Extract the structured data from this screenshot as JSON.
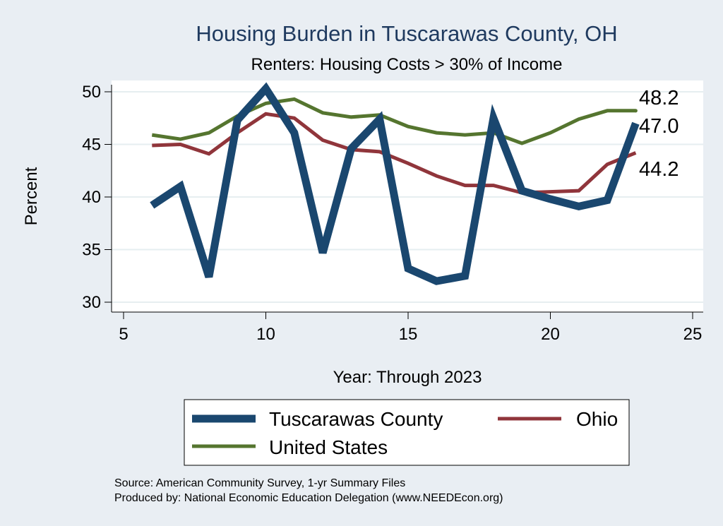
{
  "chart_data": {
    "type": "line",
    "title": "Housing Burden in Tuscarawas County, OH",
    "subtitle": "Renters: Housing Costs > 30% of Income",
    "xlabel": "Year: Through 2023",
    "ylabel": "Percent",
    "xlim": [
      5,
      25
    ],
    "ylim": [
      30,
      51
    ],
    "xticks": [
      5,
      10,
      15,
      20,
      25
    ],
    "yticks": [
      30,
      35,
      40,
      45,
      50
    ],
    "grid": true,
    "legend_position": "bottom",
    "series": [
      {
        "name": "Tuscarawas County",
        "color": "#1a476f",
        "x": [
          6,
          7,
          8,
          9,
          10,
          11,
          12,
          13,
          14,
          15,
          16,
          17,
          18,
          19,
          20,
          21,
          22,
          23
        ],
        "y": [
          39.2,
          41.0,
          32.4,
          47.3,
          50.3,
          46.1,
          34.7,
          44.6,
          47.4,
          33.2,
          32.0,
          32.5,
          47.5,
          40.6,
          39.8,
          39.1,
          39.7,
          47.0
        ],
        "end_label": "47.0"
      },
      {
        "name": "Ohio",
        "color": "#90353b",
        "x": [
          6,
          7,
          8,
          9,
          10,
          11,
          12,
          13,
          14,
          15,
          16,
          17,
          18,
          19,
          20,
          21,
          22,
          23
        ],
        "y": [
          44.9,
          45.0,
          44.1,
          46.1,
          47.9,
          47.5,
          45.4,
          44.5,
          44.3,
          43.2,
          42.0,
          41.1,
          41.1,
          40.4,
          40.5,
          40.6,
          43.1,
          44.2
        ],
        "end_label": "44.2"
      },
      {
        "name": "United States",
        "color": "#55752f",
        "x": [
          6,
          7,
          8,
          9,
          10,
          11,
          12,
          13,
          14,
          15,
          16,
          17,
          18,
          19,
          20,
          21,
          22,
          23
        ],
        "y": [
          45.9,
          45.5,
          46.1,
          47.7,
          48.9,
          49.3,
          48.0,
          47.6,
          47.8,
          46.7,
          46.1,
          45.9,
          46.1,
          45.1,
          46.1,
          47.4,
          48.2,
          48.2
        ],
        "end_label": "48.2"
      }
    ]
  },
  "source": {
    "line1": "Source: American Community Survey, 1-yr Summary Files",
    "line2": "Produced by: National Economic Education Delegation (www.NEEDEcon.org)"
  }
}
